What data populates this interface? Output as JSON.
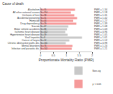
{
  "chart_data": {
    "type": "bar",
    "orientation": "horizontal",
    "title": "Cause of death",
    "x_label": "Proportionate Mortality Ratio (PMR)",
    "categories": [
      "Alcoholism",
      "All other external causes",
      "Cirrhosis of liver",
      "Accidental poisoning",
      "Homicide",
      "Drug dependency",
      "Suicide",
      "Motor vehicle accidents",
      "Ischemic heart disease",
      "Hypertensive heart disease",
      "Viral hepatitis",
      "Cancer of larynx",
      "Chronic obstructive pulm. dis.",
      "Mental disorders",
      "Infective and parasitic dis."
    ],
    "n_labels": [
      "N = 35",
      "N = 214",
      "N = 98",
      "N = 51",
      "N = 44",
      "N = 29",
      "N = 67",
      "N = 88",
      "N = 412",
      "N = 39",
      "N = 8",
      "N = 12",
      "N = 131",
      "N = 76",
      "N = 102"
    ],
    "series": [
      {
        "name": "Non-sig",
        "color": "#c8c8c8",
        "values": [
          null,
          null,
          null,
          null,
          null,
          null,
          1.08,
          1.03,
          0.96,
          1.05,
          1.61,
          1.12,
          0.98,
          null,
          null
        ],
        "value_labels": [
          null,
          null,
          null,
          null,
          null,
          null,
          "PMR = 1.08",
          "PMR = 1.03",
          "PMR = 0.96",
          "PMR = 1.05",
          "PMR = 1.61",
          "PMR = 1.12",
          "PMR = 0.98",
          null,
          null
        ]
      },
      {
        "name": "p < 0.05",
        "color": "#f59a9a",
        "values": [
          1.34,
          1.18,
          1.31,
          1.42,
          1.27,
          1.39,
          null,
          null,
          null,
          null,
          null,
          null,
          null,
          1.24,
          1.21
        ],
        "value_labels": [
          "PMR = 1.34",
          "PMR = 1.18",
          "PMR = 1.31",
          "PMR = 1.42",
          "PMR = 1.27",
          "PMR = 1.39",
          null,
          null,
          null,
          null,
          null,
          null,
          null,
          "PMR = 1.24",
          "PMR = 1.21"
        ]
      }
    ],
    "xlim": [
      0,
      2
    ],
    "xticks": [
      0,
      0.5,
      1,
      1.5,
      2
    ],
    "data_labels": true,
    "grid": false,
    "legend": "lower right"
  }
}
